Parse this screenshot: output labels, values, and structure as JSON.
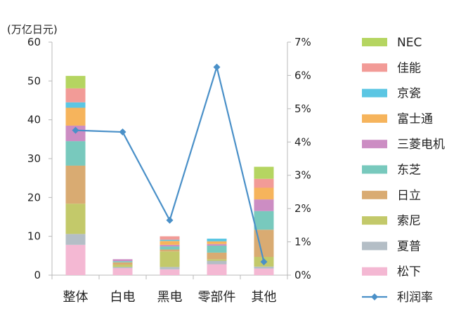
{
  "chart_data": {
    "type": "bar",
    "subtype": "stacked-bar-with-line-secondary-axis",
    "y_unit_label": "(万亿日元)",
    "categories": [
      "整体",
      "白电",
      "黑电",
      "零部件",
      "其他"
    ],
    "ylim": [
      0,
      60
    ],
    "y_ticks": [
      0,
      10,
      20,
      30,
      40,
      50,
      60
    ],
    "y2lim": [
      0,
      7
    ],
    "y2_ticks": [
      "0%",
      "1%",
      "2%",
      "3%",
      "4%",
      "5%",
      "6%",
      "7%"
    ],
    "grid": false,
    "legend_position": "right",
    "series": [
      {
        "name": "松下",
        "color": "#f4b8d3",
        "values": [
          7.8,
          1.8,
          1.5,
          2.8,
          1.7
        ]
      },
      {
        "name": "夏普",
        "color": "#b4bec6",
        "values": [
          2.8,
          0.3,
          0.6,
          0.9,
          0.5
        ]
      },
      {
        "name": "索尼",
        "color": "#c3c96a",
        "values": [
          7.8,
          0.6,
          4.0,
          0.4,
          2.5
        ]
      },
      {
        "name": "日立",
        "color": "#d9ab72",
        "values": [
          9.8,
          0.6,
          0.5,
          1.7,
          7.0
        ]
      },
      {
        "name": "东芝",
        "color": "#78c9bd",
        "values": [
          6.3,
          0.3,
          0.8,
          1.8,
          4.8
        ]
      },
      {
        "name": "三菱电机",
        "color": "#cc8dc3",
        "values": [
          4.0,
          0.5,
          0.4,
          0.4,
          3.0
        ]
      },
      {
        "name": "富士通",
        "color": "#f6b45c",
        "values": [
          4.6,
          0.0,
          1.0,
          0.7,
          3.0
        ]
      },
      {
        "name": "京瓷",
        "color": "#5bc6e3",
        "values": [
          1.4,
          0.0,
          0.3,
          0.7,
          0.0
        ]
      },
      {
        "name": "佳能",
        "color": "#f29b97",
        "values": [
          3.6,
          0.0,
          0.9,
          0.0,
          2.3
        ]
      },
      {
        "name": "NEC",
        "color": "#b5d561",
        "values": [
          3.2,
          0.0,
          0.0,
          0.0,
          3.1
        ]
      }
    ],
    "line_series": {
      "name": "利润率",
      "color": "#4a90c8",
      "values": [
        4.35,
        4.3,
        1.65,
        6.25,
        0.4
      ]
    }
  }
}
